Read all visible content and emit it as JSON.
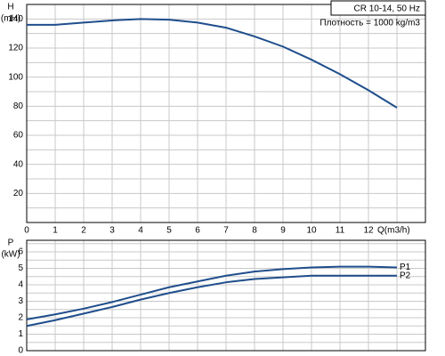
{
  "chart_data": [
    {
      "type": "line",
      "ylabel": "H",
      "yunit": "(mH)",
      "xlabel": "Q(m3/h)",
      "annotations": [
        "CR 10-14, 50 Hz",
        "Плотность = 1000 kg/m3"
      ],
      "x": [
        0,
        1,
        2,
        3,
        4,
        5,
        6,
        7,
        8,
        9,
        10,
        11,
        12,
        13
      ],
      "series": [
        {
          "name": "H",
          "color": "#1f4e8c",
          "values": [
            136,
            136,
            137.5,
            139,
            140,
            139.5,
            137.5,
            134,
            128,
            121,
            112,
            102,
            91,
            79
          ]
        }
      ],
      "xlim": [
        0,
        14
      ],
      "xticks": [
        0,
        1,
        2,
        3,
        4,
        5,
        6,
        7,
        8,
        9,
        10,
        11,
        12
      ],
      "x_grid_ticks": [
        13,
        14
      ],
      "ylim": [
        0,
        150
      ],
      "yticks": [
        20,
        40,
        60,
        80,
        100,
        120,
        140
      ],
      "y_minor_ticks": [
        10,
        30,
        50,
        70,
        90,
        110,
        130,
        150
      ],
      "grid": true
    },
    {
      "type": "line",
      "ylabel": "P",
      "yunit": "(kW)",
      "x": [
        0,
        1,
        2,
        3,
        4,
        5,
        6,
        7,
        8,
        9,
        10,
        11,
        12,
        13
      ],
      "series": [
        {
          "name": "P1",
          "color": "#1f4e8c",
          "values": [
            1.9,
            2.2,
            2.55,
            2.95,
            3.4,
            3.85,
            4.2,
            4.55,
            4.8,
            4.95,
            5.05,
            5.1,
            5.1,
            5.05
          ]
        },
        {
          "name": "P2",
          "color": "#1f4e8c",
          "values": [
            1.5,
            1.85,
            2.25,
            2.65,
            3.1,
            3.5,
            3.85,
            4.15,
            4.35,
            4.45,
            4.55,
            4.55,
            4.55,
            4.55
          ]
        }
      ],
      "xlim": [
        0,
        14
      ],
      "x_grid_ticks": [
        0,
        1,
        2,
        3,
        4,
        5,
        6,
        7,
        8,
        9,
        10,
        11,
        12,
        13,
        14
      ],
      "ylim": [
        0,
        6.7
      ],
      "yticks": [
        0,
        1,
        2,
        3,
        4,
        5,
        6
      ],
      "y_minor_ticks": [
        0.5,
        1.5,
        2.5,
        3.5,
        4.5,
        5.5,
        6.5
      ],
      "grid": true
    }
  ]
}
